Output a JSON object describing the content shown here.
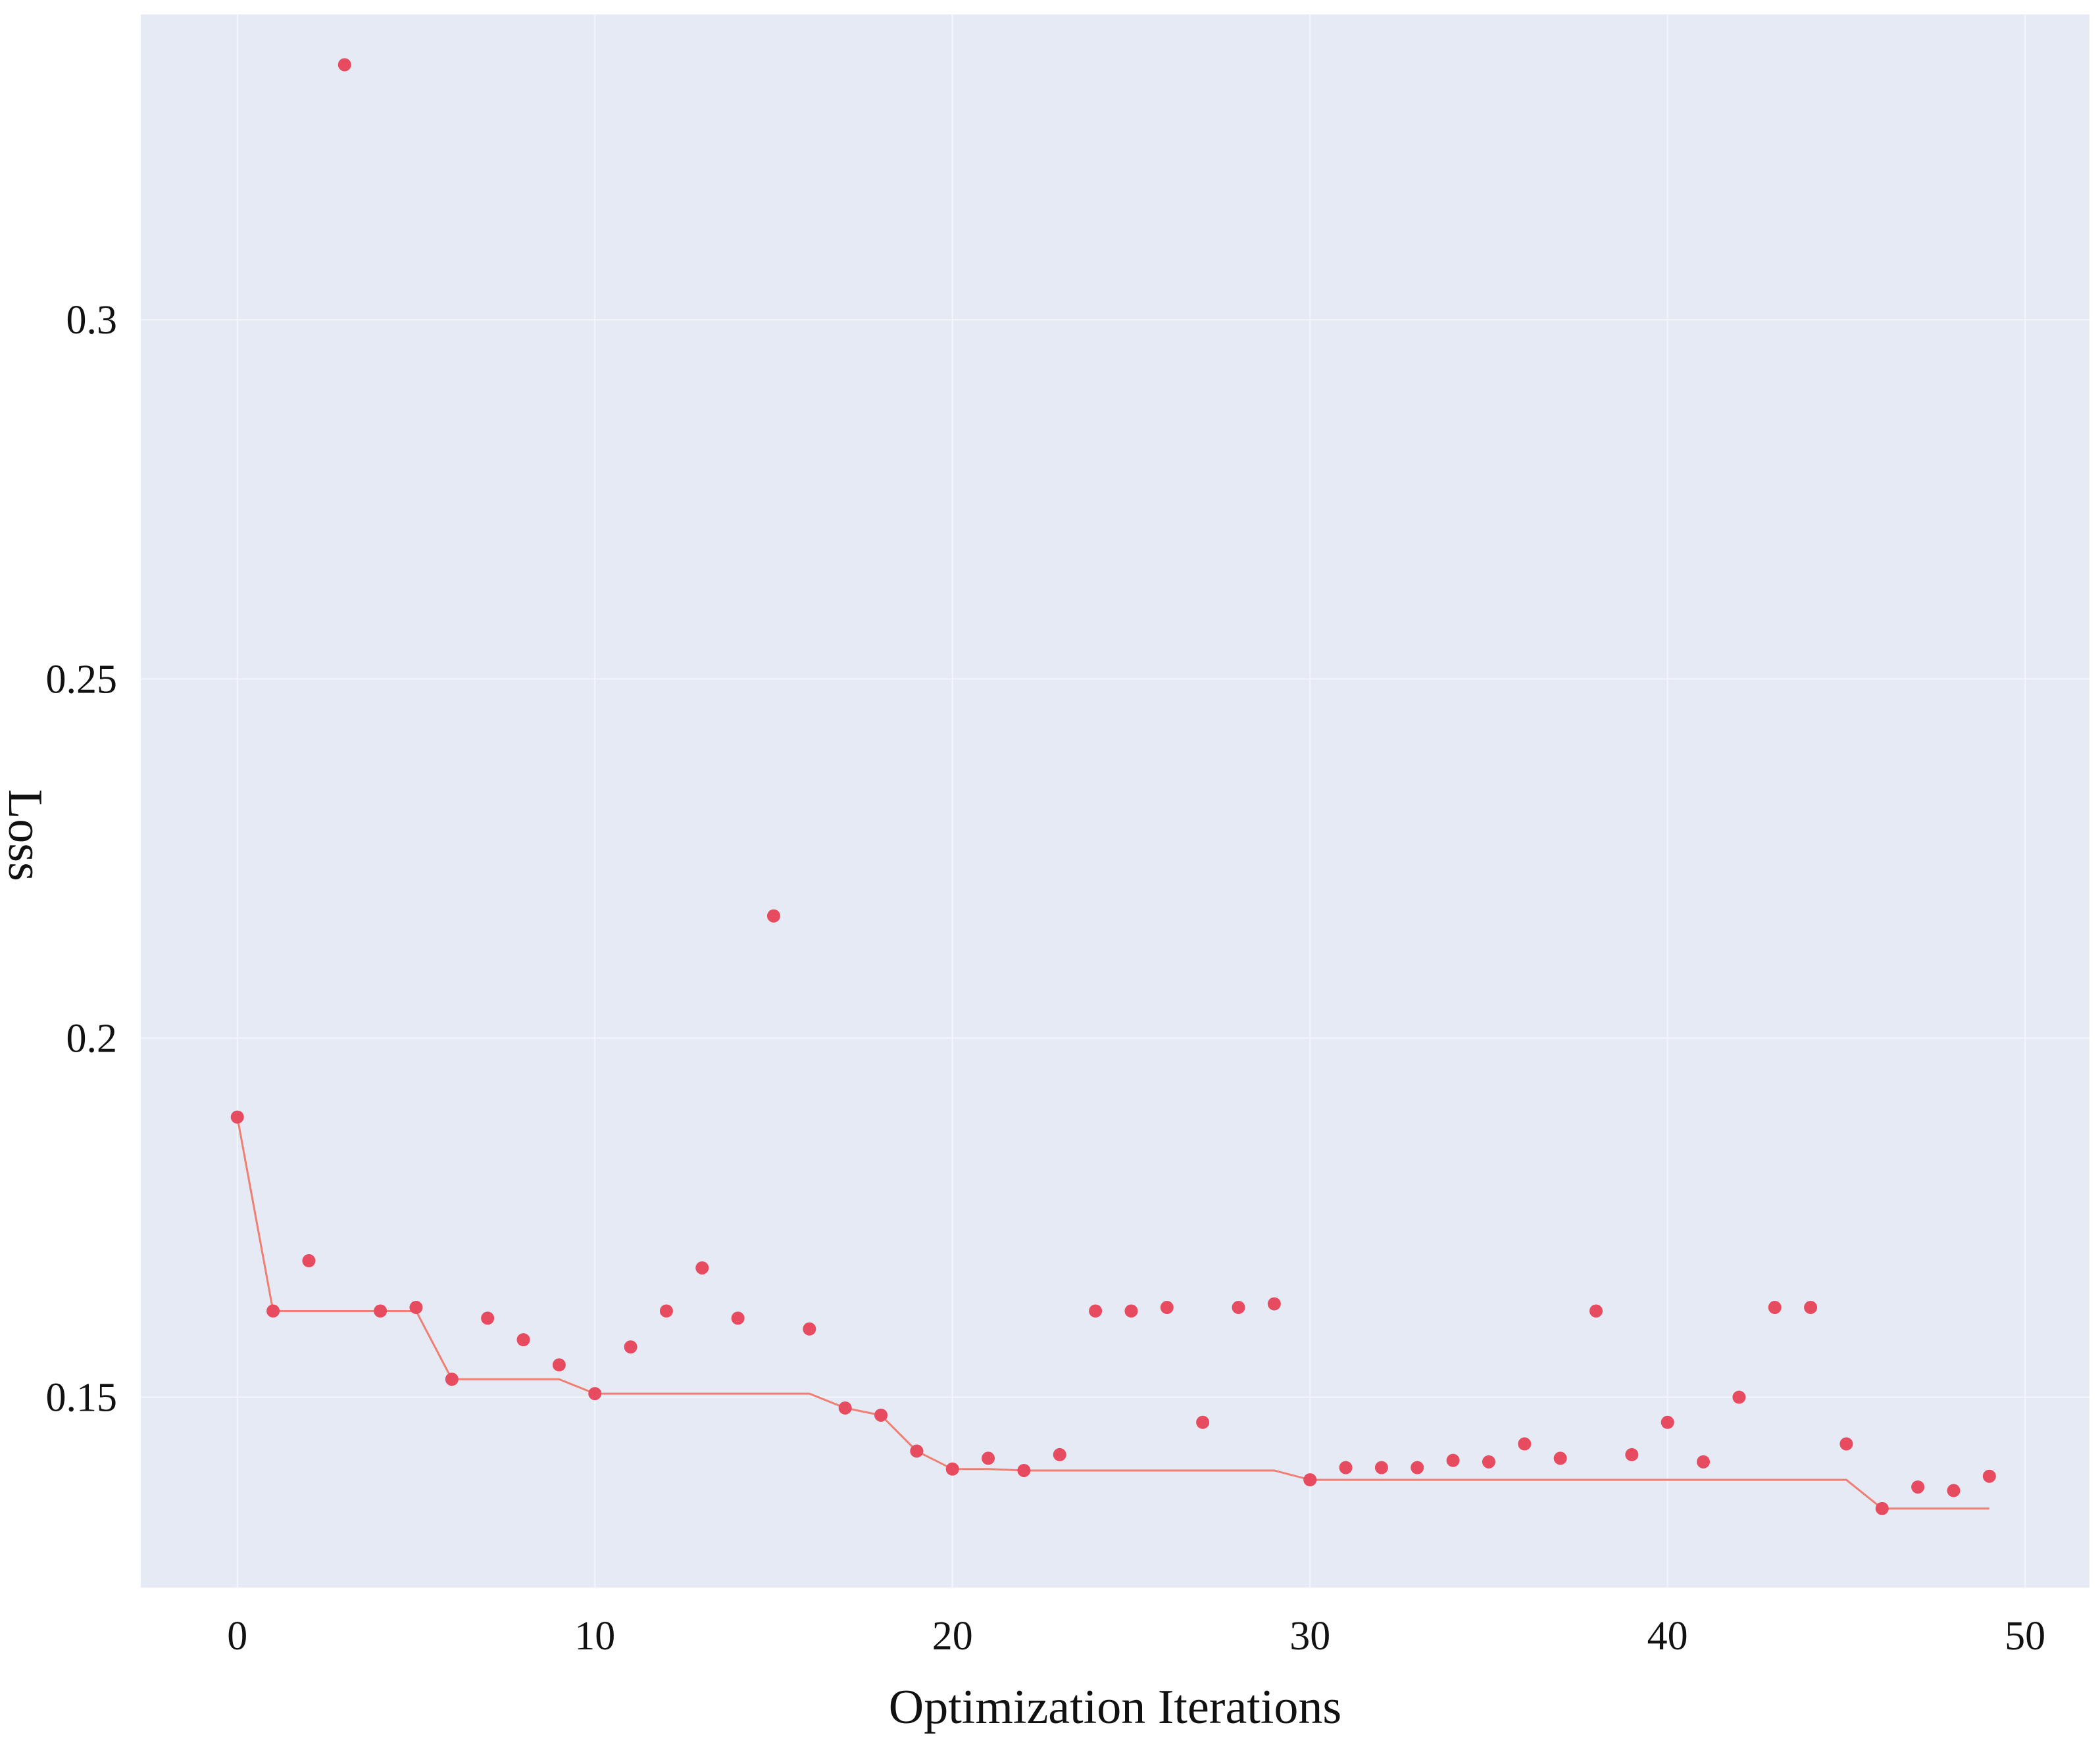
{
  "chart_data": {
    "type": "scatter",
    "title": "",
    "xlabel": "Optimization Iterations",
    "ylabel": "Loss",
    "xlim": [
      -2.7,
      51.8
    ],
    "ylim": [
      0.1235,
      0.3425
    ],
    "grid": true,
    "legend": "none",
    "x_ticks": [
      0,
      10,
      20,
      30,
      40,
      50
    ],
    "x_tick_labels": [
      "0",
      "10",
      "20",
      "30",
      "40",
      "50"
    ],
    "y_ticks": [
      0.15,
      0.2,
      0.25,
      0.3
    ],
    "y_tick_labels": [
      "0.15",
      "0.2",
      "0.25",
      "0.3"
    ],
    "colors": {
      "plot_background": "#e5eaf5",
      "grid": "#f3f6fb",
      "points": "#e64b5f",
      "best_line": "#ee7f72"
    },
    "series": [
      {
        "type": "scatter",
        "x": [
          0,
          1,
          2,
          3,
          4,
          5,
          6,
          7,
          8,
          9,
          10,
          11,
          12,
          13,
          14,
          15,
          16,
          17,
          18,
          19,
          20,
          21,
          22,
          23,
          24,
          25,
          26,
          27,
          28,
          29,
          30,
          31,
          32,
          33,
          34,
          35,
          36,
          37,
          38,
          39,
          40,
          41,
          42,
          43,
          44,
          45,
          46,
          47,
          48,
          49
        ],
        "values": [
          0.189,
          0.162,
          0.169,
          0.3355,
          0.162,
          0.1625,
          0.1525,
          0.161,
          0.158,
          0.1545,
          0.1505,
          0.157,
          0.162,
          0.168,
          0.161,
          0.217,
          0.1595,
          0.1485,
          0.1475,
          0.1425,
          0.14,
          0.1415,
          0.1398,
          0.142,
          0.162,
          0.162,
          0.1625,
          0.1465,
          0.1625,
          0.163,
          0.1385,
          0.1402,
          0.1402,
          0.1402,
          0.1412,
          0.141,
          0.1435,
          0.1415,
          0.162,
          0.142,
          0.1465,
          0.141,
          0.15,
          0.1625,
          0.1625,
          0.1435,
          0.1345,
          0.1375,
          0.137,
          0.139
        ]
      },
      {
        "type": "line",
        "x": [
          0,
          1,
          2,
          3,
          4,
          5,
          6,
          7,
          8,
          9,
          10,
          11,
          12,
          13,
          14,
          15,
          16,
          17,
          18,
          19,
          20,
          21,
          22,
          23,
          24,
          25,
          26,
          27,
          28,
          29,
          30,
          31,
          32,
          33,
          34,
          35,
          36,
          37,
          38,
          39,
          40,
          41,
          42,
          43,
          44,
          45,
          46,
          47,
          48,
          49
        ],
        "values": [
          0.189,
          0.162,
          0.162,
          0.162,
          0.162,
          0.162,
          0.1525,
          0.1525,
          0.1525,
          0.1525,
          0.1505,
          0.1505,
          0.1505,
          0.1505,
          0.1505,
          0.1505,
          0.1505,
          0.1485,
          0.1475,
          0.1425,
          0.14,
          0.14,
          0.1398,
          0.1398,
          0.1398,
          0.1398,
          0.1398,
          0.1398,
          0.1398,
          0.1398,
          0.1385,
          0.1385,
          0.1385,
          0.1385,
          0.1385,
          0.1385,
          0.1385,
          0.1385,
          0.1385,
          0.1385,
          0.1385,
          0.1385,
          0.1385,
          0.1385,
          0.1385,
          0.1385,
          0.1345,
          0.1345,
          0.1345,
          0.1345
        ]
      }
    ]
  }
}
